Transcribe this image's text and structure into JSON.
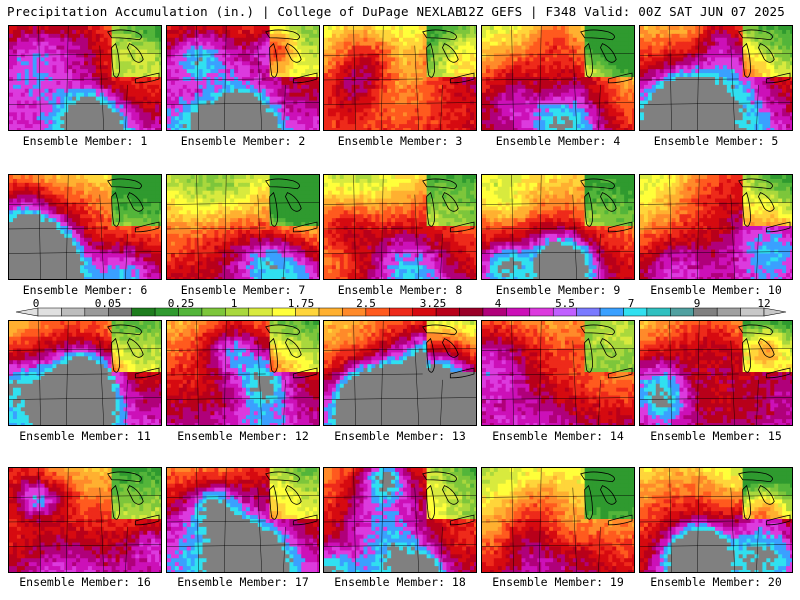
{
  "header": {
    "left": "Precipitation Accumulation (in.) | College of DuPage NEXLAB",
    "right": "12Z GEFS | F348 Valid: 00Z SAT JUN 07 2025"
  },
  "colorbar": {
    "tick_labels": [
      "0",
      "0.05",
      "0.25",
      "1",
      "1.75",
      "2.5",
      "3.25",
      "4",
      "5.5",
      "7",
      "9",
      "12"
    ],
    "colors": [
      "#e0e0e0",
      "#bdbdbd",
      "#9a9a9a",
      "#7a7a7a",
      "#1e7d1e",
      "#2f9a2f",
      "#53b53a",
      "#7dc63b",
      "#a9d83d",
      "#d8ea3e",
      "#ffff3a",
      "#ffd53a",
      "#ffb030",
      "#ff8a2a",
      "#ff5a1e",
      "#ee2a1a",
      "#d60a10",
      "#b8001a",
      "#9a0028",
      "#b0007a",
      "#cc10b8",
      "#dc3ade",
      "#c060ff",
      "#7a7aff",
      "#3aa0ff",
      "#30e0f0",
      "#30c0c0",
      "#50a0a0",
      "#808080",
      "#a0a0a0",
      "#c8c8c8"
    ]
  },
  "members": [
    {
      "label": "Ensemble Member: 1",
      "wetness": 0.75,
      "extreme": true
    },
    {
      "label": "Ensemble Member: 2",
      "wetness": 0.85,
      "extreme": true
    },
    {
      "label": "Ensemble Member: 3",
      "wetness": 0.35,
      "extreme": false
    },
    {
      "label": "Ensemble Member: 4",
      "wetness": 0.4,
      "extreme": false
    },
    {
      "label": "Ensemble Member: 5",
      "wetness": 0.7,
      "extreme": true
    },
    {
      "label": "Ensemble Member: 6",
      "wetness": 0.6,
      "extreme": true
    },
    {
      "label": "Ensemble Member: 7",
      "wetness": 0.5,
      "extreme": false
    },
    {
      "label": "Ensemble Member: 8",
      "wetness": 0.5,
      "extreme": false
    },
    {
      "label": "Ensemble Member: 9",
      "wetness": 0.55,
      "extreme": true
    },
    {
      "label": "Ensemble Member: 10",
      "wetness": 0.55,
      "extreme": false
    },
    {
      "label": "Ensemble Member: 11",
      "wetness": 0.8,
      "extreme": true
    },
    {
      "label": "Ensemble Member: 12",
      "wetness": 0.7,
      "extreme": false
    },
    {
      "label": "Ensemble Member: 13",
      "wetness": 0.75,
      "extreme": true
    },
    {
      "label": "Ensemble Member: 14",
      "wetness": 0.65,
      "extreme": false
    },
    {
      "label": "Ensemble Member: 15",
      "wetness": 0.6,
      "extreme": false
    },
    {
      "label": "Ensemble Member: 16",
      "wetness": 0.7,
      "extreme": false
    },
    {
      "label": "Ensemble Member: 17",
      "wetness": 0.8,
      "extreme": true
    },
    {
      "label": "Ensemble Member: 18",
      "wetness": 0.6,
      "extreme": false
    },
    {
      "label": "Ensemble Member: 19",
      "wetness": 0.5,
      "extreme": false
    },
    {
      "label": "Ensemble Member: 20",
      "wetness": 0.55,
      "extreme": true
    }
  ]
}
